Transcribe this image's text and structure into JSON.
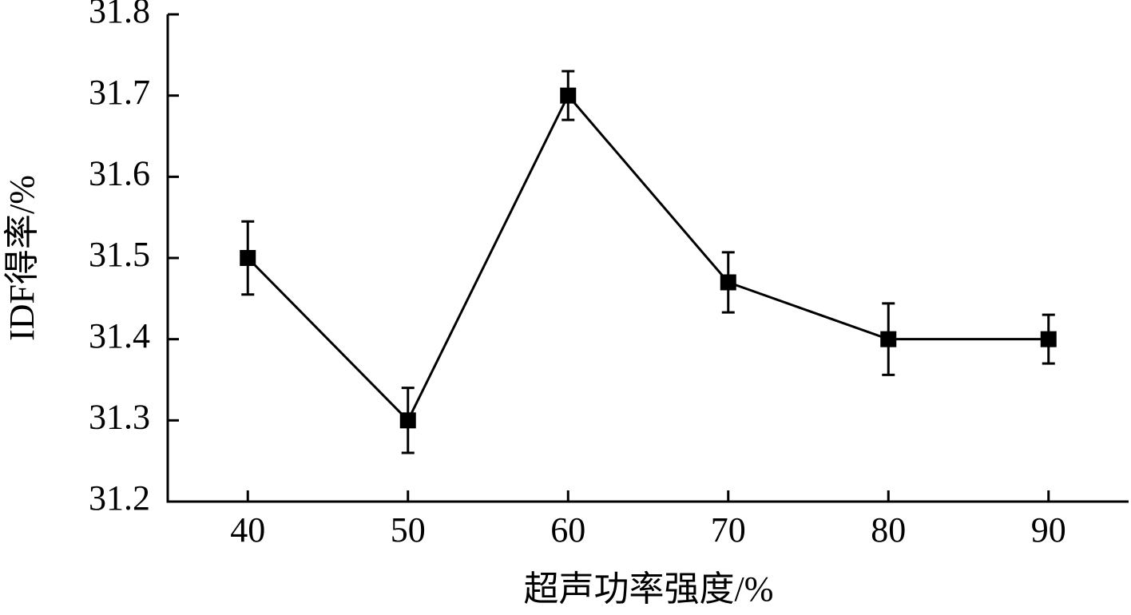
{
  "chart_data": {
    "type": "line",
    "x_label": "超声功率强度/%",
    "y_label": "IDF得率/%",
    "xlim": [
      35,
      95
    ],
    "xticks": [
      40,
      50,
      60,
      70,
      80,
      90
    ],
    "ylim": [
      31.2,
      31.8
    ],
    "yticks": [
      31.2,
      31.3,
      31.4,
      31.5,
      31.6,
      31.7,
      31.8
    ],
    "x": [
      40,
      50,
      60,
      70,
      80,
      90
    ],
    "series": [
      {
        "color": "#000000",
        "values": [
          31.5,
          31.3,
          31.7,
          31.47,
          31.4,
          31.4
        ],
        "errors": [
          0.045,
          0.04,
          0.03,
          0.037,
          0.044,
          0.03
        ]
      }
    ]
  }
}
